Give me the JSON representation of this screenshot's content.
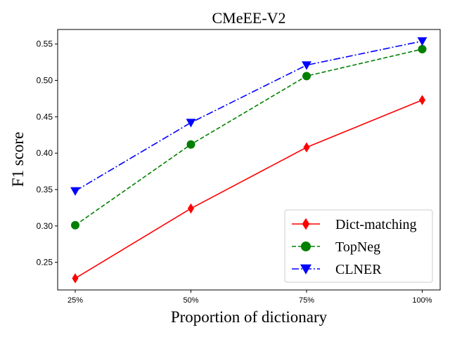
{
  "chart_data": {
    "type": "line",
    "title": "CMeEE-V2",
    "xlabel": "Proportion of dictionary",
    "ylabel": "F1 score",
    "categories": [
      "25%",
      "50%",
      "75%",
      "100%"
    ],
    "ylim": [
      0.212,
      0.57
    ],
    "yticks": [
      0.25,
      0.3,
      0.35,
      0.4,
      0.45,
      0.5,
      0.55
    ],
    "ytick_labels": [
      "0.25",
      "0.30",
      "0.35",
      "0.40",
      "0.45",
      "0.50",
      "0.55"
    ],
    "grid": false,
    "legend_position": "lower-right",
    "series": [
      {
        "name": "Dict-matching",
        "values": [
          0.228,
          0.324,
          0.408,
          0.473
        ],
        "color": "#ff0000",
        "marker": "diamond",
        "dash": "solid"
      },
      {
        "name": "TopNeg",
        "values": [
          0.301,
          0.412,
          0.506,
          0.543
        ],
        "color": "#008000",
        "marker": "circle",
        "dash": "dashed"
      },
      {
        "name": "CLNER",
        "values": [
          0.348,
          0.442,
          0.521,
          0.554
        ],
        "color": "#0000ff",
        "marker": "triangle-down",
        "dash": "dashdot"
      }
    ]
  }
}
